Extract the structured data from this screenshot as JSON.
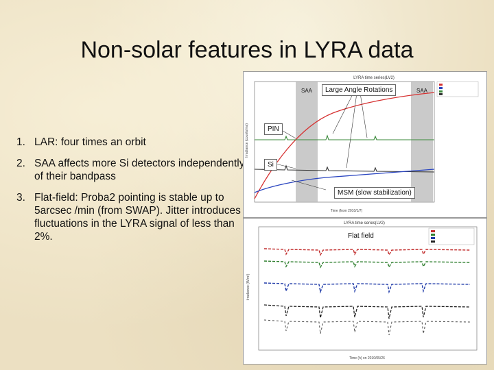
{
  "slide": {
    "title": "Non-solar features in LYRA data",
    "items": [
      {
        "num": "1.",
        "text": "LAR: four times an orbit"
      },
      {
        "num": "2.",
        "text": "SAA affects more Si detectors independently of their bandpass"
      },
      {
        "num": "3.",
        "text": "Flat-field: Proba2 pointing is stable up to 5arcsec /min (from SWAP). Jitter introduces fluctuations in the LYRA signal of less than 2%."
      }
    ]
  },
  "figure_top": {
    "plot_title": "LYRA time series(LV2)",
    "annotation_lar": "Large Angle Rotations",
    "saa_label_1": "SAA",
    "saa_label_2": "SAA",
    "pin_label": "PIN",
    "si_label": "Si",
    "msm_label": "MSM (slow stabilization)",
    "xlabel": "Time (from 2010/1/7)",
    "ylabel": "Irradiance (counts/ms)",
    "colors": {
      "red": "#d63232",
      "green": "#3a8a3a",
      "blue": "#2a45c0",
      "black": "#333333",
      "saa_band": "#bdbdbd"
    }
  },
  "figure_bottom": {
    "plot_title": "LYRA time series(LV2)",
    "annotation": "Flat field",
    "xlabel": "Time (h) on 2010/05/26",
    "ylabel": "Irradiance (W/m²)",
    "colors": {
      "red": "#c02828",
      "green": "#2f7f2f",
      "blue": "#1f3aa8",
      "black": "#222222"
    }
  }
}
